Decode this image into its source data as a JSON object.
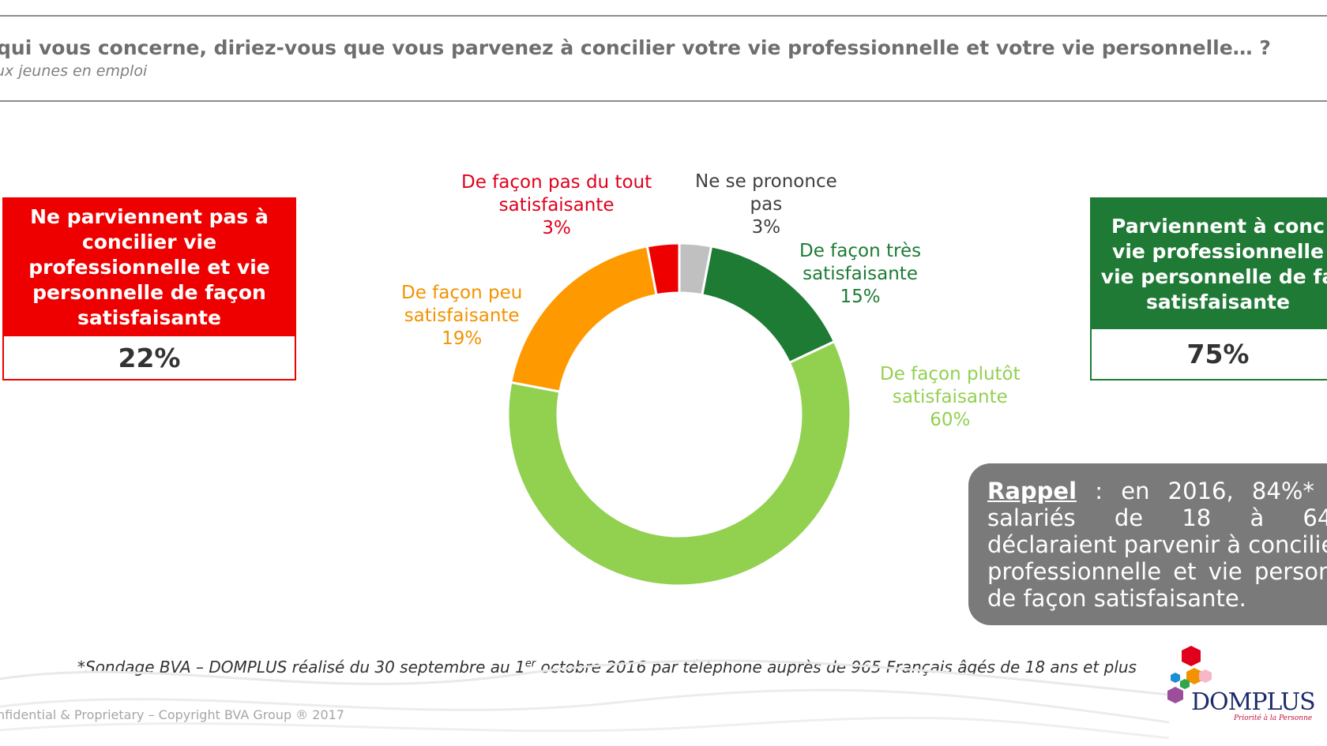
{
  "header": {
    "question": "qui vous concerne, diriez-vous que vous parvenez à concilier votre vie professionnelle et votre vie personnelle… ?",
    "subtitle": "ux jeunes en emploi"
  },
  "summary_negative": {
    "line1": "Ne parviennent pas à",
    "line2": "concilier vie",
    "line3": "professionnelle et vie",
    "line4": "personnelle de façon",
    "line5": "satisfaisante",
    "value": "22%",
    "color": "#ee0000"
  },
  "summary_positive": {
    "line1": "Parviennent à conc",
    "line2": "vie professionnelle",
    "line3": "vie personnelle de fa",
    "line4": "satisfaisante",
    "value": "75%",
    "color": "#1f7a36"
  },
  "chart_data": {
    "type": "pie",
    "donut": true,
    "start_angle_deg": 0,
    "direction": "clockwise",
    "slices": [
      {
        "label1": "Ne se prononce",
        "label2": "pas",
        "value": 3,
        "value_label": "3%",
        "color": "#c0c0c0"
      },
      {
        "label1": "De façon très",
        "label2": "satisfaisante",
        "value": 15,
        "value_label": "15%",
        "color": "#1e7b34"
      },
      {
        "label1": "De façon plutôt",
        "label2": "satisfaisante",
        "value": 60,
        "value_label": "60%",
        "color": "#92d050"
      },
      {
        "label1": "De façon peu",
        "label2": "satisfaisante",
        "value": 19,
        "value_label": "19%",
        "color": "#ff9900"
      },
      {
        "label1": "De façon pas du tout",
        "label2": "satisfaisante",
        "value": 3,
        "value_label": "3%",
        "color": "#ee0000"
      }
    ]
  },
  "rappel": {
    "heading": "Rappel",
    "line1_rest": " : en 2016, 84%*",
    "line2": "salariés de 18 à 64",
    "line3": "déclaraient parvenir à concilie",
    "line4": "professionnelle et vie person",
    "line5": "de façon satisfaisante."
  },
  "footnote": {
    "before": "*Sondage BVA – DOMPLUS réalisé du 30 septembre au 1",
    "sup": "er",
    "after": " octobre 2016 par téléphone auprès de 965 Français âgés de 18 ans et plus"
  },
  "copyright": "nfidential & Proprietary – Copyright BVA Group ® 2017",
  "logo": {
    "name": "DOMPLUS",
    "tagline": "Priorité à la Personne"
  }
}
